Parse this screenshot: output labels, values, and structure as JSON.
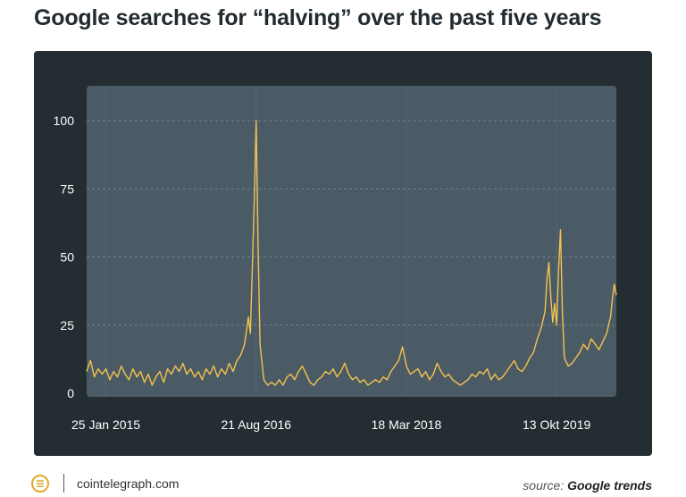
{
  "title": "Google searches for “halving” over the past five years",
  "footer": {
    "site": "cointelegraph.com",
    "source_prefix": "source:",
    "source_name": "Google trends"
  },
  "colors": {
    "panel": "#242d32",
    "plot_bg": "#4a5b66",
    "line": "#f5c24d",
    "axis_text": "#ffffff"
  },
  "chart_data": {
    "type": "line",
    "title": "Google searches for “halving” over the past five years",
    "xlabel": "",
    "ylabel": "",
    "ylim": [
      0,
      110
    ],
    "yticks": [
      0,
      25,
      50,
      75,
      100
    ],
    "grid": true,
    "x_ticks": [
      {
        "label": "25 Jan 2015",
        "week": 10
      },
      {
        "label": "21 Aug 2016",
        "week": 88
      },
      {
        "label": "18 Mar 2018",
        "week": 166
      },
      {
        "label": "13 Okt 2019",
        "week": 244
      }
    ],
    "x_range": [
      0,
      275
    ],
    "series": [
      {
        "name": "",
        "points": [
          [
            0,
            8
          ],
          [
            2,
            12
          ],
          [
            4,
            6
          ],
          [
            6,
            9
          ],
          [
            8,
            7
          ],
          [
            10,
            9
          ],
          [
            12,
            5
          ],
          [
            14,
            8
          ],
          [
            16,
            6
          ],
          [
            18,
            10
          ],
          [
            20,
            7
          ],
          [
            22,
            5
          ],
          [
            24,
            9
          ],
          [
            26,
            6
          ],
          [
            28,
            8
          ],
          [
            30,
            4
          ],
          [
            32,
            7
          ],
          [
            34,
            3
          ],
          [
            36,
            6
          ],
          [
            38,
            8
          ],
          [
            40,
            4
          ],
          [
            42,
            9
          ],
          [
            44,
            7
          ],
          [
            46,
            10
          ],
          [
            48,
            8
          ],
          [
            50,
            11
          ],
          [
            52,
            7
          ],
          [
            54,
            9
          ],
          [
            56,
            6
          ],
          [
            58,
            8
          ],
          [
            60,
            5
          ],
          [
            62,
            9
          ],
          [
            64,
            7
          ],
          [
            66,
            10
          ],
          [
            68,
            6
          ],
          [
            70,
            9
          ],
          [
            72,
            7
          ],
          [
            74,
            11
          ],
          [
            76,
            8
          ],
          [
            78,
            12
          ],
          [
            80,
            14
          ],
          [
            82,
            18
          ],
          [
            84,
            28
          ],
          [
            85,
            22
          ],
          [
            86,
            45
          ],
          [
            87,
            70
          ],
          [
            88,
            100
          ],
          [
            89,
            55
          ],
          [
            90,
            18
          ],
          [
            92,
            5
          ],
          [
            94,
            3
          ],
          [
            96,
            4
          ],
          [
            98,
            3
          ],
          [
            100,
            5
          ],
          [
            102,
            3
          ],
          [
            104,
            6
          ],
          [
            106,
            7
          ],
          [
            108,
            5
          ],
          [
            110,
            8
          ],
          [
            112,
            10
          ],
          [
            114,
            7
          ],
          [
            116,
            4
          ],
          [
            118,
            3
          ],
          [
            120,
            5
          ],
          [
            122,
            6
          ],
          [
            124,
            8
          ],
          [
            126,
            7
          ],
          [
            128,
            9
          ],
          [
            130,
            6
          ],
          [
            132,
            8
          ],
          [
            134,
            11
          ],
          [
            136,
            7
          ],
          [
            138,
            5
          ],
          [
            140,
            6
          ],
          [
            142,
            4
          ],
          [
            144,
            5
          ],
          [
            146,
            3
          ],
          [
            148,
            4
          ],
          [
            150,
            5
          ],
          [
            152,
            4
          ],
          [
            154,
            6
          ],
          [
            156,
            5
          ],
          [
            158,
            8
          ],
          [
            160,
            10
          ],
          [
            162,
            12
          ],
          [
            164,
            17
          ],
          [
            166,
            10
          ],
          [
            168,
            7
          ],
          [
            170,
            8
          ],
          [
            172,
            9
          ],
          [
            174,
            6
          ],
          [
            176,
            8
          ],
          [
            178,
            5
          ],
          [
            180,
            7
          ],
          [
            182,
            11
          ],
          [
            184,
            8
          ],
          [
            186,
            6
          ],
          [
            188,
            7
          ],
          [
            190,
            5
          ],
          [
            192,
            4
          ],
          [
            194,
            3
          ],
          [
            196,
            4
          ],
          [
            198,
            5
          ],
          [
            200,
            7
          ],
          [
            202,
            6
          ],
          [
            204,
            8
          ],
          [
            206,
            7
          ],
          [
            208,
            9
          ],
          [
            210,
            5
          ],
          [
            212,
            7
          ],
          [
            214,
            5
          ],
          [
            216,
            6
          ],
          [
            218,
            8
          ],
          [
            220,
            10
          ],
          [
            222,
            12
          ],
          [
            224,
            9
          ],
          [
            226,
            8
          ],
          [
            228,
            10
          ],
          [
            230,
            13
          ],
          [
            232,
            15
          ],
          [
            234,
            20
          ],
          [
            236,
            24
          ],
          [
            238,
            30
          ],
          [
            239,
            42
          ],
          [
            240,
            48
          ],
          [
            241,
            35
          ],
          [
            242,
            26
          ],
          [
            243,
            33
          ],
          [
            244,
            25
          ],
          [
            245,
            45
          ],
          [
            246,
            60
          ],
          [
            247,
            30
          ],
          [
            248,
            13
          ],
          [
            250,
            10
          ],
          [
            252,
            11
          ],
          [
            254,
            13
          ],
          [
            256,
            15
          ],
          [
            258,
            18
          ],
          [
            260,
            16
          ],
          [
            262,
            20
          ],
          [
            264,
            18
          ],
          [
            266,
            16
          ],
          [
            268,
            19
          ],
          [
            270,
            22
          ],
          [
            272,
            28
          ],
          [
            273,
            35
          ],
          [
            274,
            40
          ],
          [
            275,
            36
          ]
        ]
      }
    ]
  }
}
